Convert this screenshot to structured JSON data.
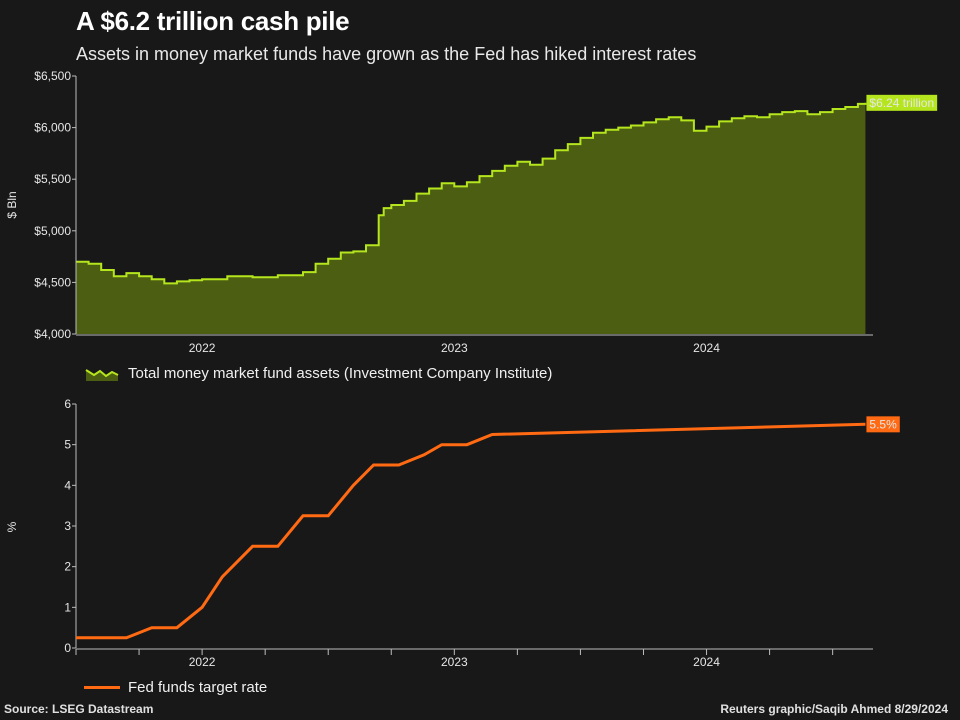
{
  "title": "A $6.2 trillion cash pile",
  "subtitle": "Assets in money market funds have grown as the Fed has hiked interest rates",
  "source": "Source: LSEG Datastream",
  "credit": "Reuters graphic/Saqib Ahmed 8/29/2024",
  "colors": {
    "assets_line": "#b5e61d",
    "assets_fill": "#4b5e12",
    "rate_line": "#ff6a13",
    "background": "#181818"
  },
  "chart_data": [
    {
      "type": "area",
      "ylabel": "$ Bln",
      "ylim": [
        4000,
        6500
      ],
      "yticks": [
        4000,
        4500,
        5000,
        5500,
        6000,
        6500
      ],
      "ytick_labels": [
        "$4,000",
        "$4,500",
        "$5,000",
        "$5,500",
        "$6,000",
        "$6,500"
      ],
      "xlim": [
        2021.5,
        2024.66
      ],
      "xticks": [
        2022,
        2023,
        2024
      ],
      "xtick_labels": [
        "2022",
        "2023",
        "2024"
      ],
      "series": [
        {
          "name": "Total money market fund assets (Investment Company Institute)",
          "x": [
            2021.5,
            2021.55,
            2021.6,
            2021.65,
            2021.7,
            2021.75,
            2021.8,
            2021.85,
            2021.9,
            2021.95,
            2022.0,
            2022.1,
            2022.2,
            2022.3,
            2022.4,
            2022.45,
            2022.5,
            2022.55,
            2022.6,
            2022.65,
            2022.7,
            2022.72,
            2022.75,
            2022.8,
            2022.85,
            2022.9,
            2022.95,
            2023.0,
            2023.05,
            2023.1,
            2023.15,
            2023.2,
            2023.25,
            2023.3,
            2023.35,
            2023.4,
            2023.45,
            2023.5,
            2023.55,
            2023.6,
            2023.65,
            2023.7,
            2023.75,
            2023.8,
            2023.85,
            2023.9,
            2023.95,
            2024.0,
            2024.05,
            2024.1,
            2024.15,
            2024.2,
            2024.25,
            2024.3,
            2024.35,
            2024.4,
            2024.45,
            2024.5,
            2024.55,
            2024.6,
            2024.63
          ],
          "values": [
            4700,
            4680,
            4620,
            4560,
            4590,
            4560,
            4530,
            4490,
            4510,
            4520,
            4530,
            4560,
            4550,
            4570,
            4600,
            4680,
            4730,
            4790,
            4800,
            4860,
            5150,
            5220,
            5250,
            5290,
            5360,
            5410,
            5460,
            5430,
            5470,
            5530,
            5580,
            5630,
            5670,
            5640,
            5700,
            5780,
            5840,
            5900,
            5950,
            5980,
            6000,
            6020,
            6050,
            6080,
            6100,
            6070,
            5970,
            6010,
            6060,
            6090,
            6110,
            6100,
            6130,
            6150,
            6160,
            6130,
            6150,
            6180,
            6200,
            6230,
            6240
          ]
        }
      ],
      "end_label": "$6.24 trillion"
    },
    {
      "type": "line",
      "ylabel": "%",
      "ylim": [
        0,
        6
      ],
      "yticks": [
        0,
        1,
        2,
        3,
        4,
        5,
        6
      ],
      "xlim": [
        2021.5,
        2024.66
      ],
      "xticks": [
        2022,
        2023,
        2024
      ],
      "xtick_labels": [
        "2022",
        "2023",
        "2024"
      ],
      "series": [
        {
          "name": "Fed funds target rate",
          "x": [
            2021.5,
            2021.7,
            2021.8,
            2021.9,
            2022.0,
            2022.08,
            2022.2,
            2022.3,
            2022.4,
            2022.5,
            2022.6,
            2022.68,
            2022.78,
            2022.88,
            2022.95,
            2023.05,
            2023.15,
            2024.63
          ],
          "values": [
            0.25,
            0.25,
            0.5,
            0.5,
            1.0,
            1.75,
            2.5,
            2.5,
            3.25,
            3.25,
            4.0,
            4.5,
            4.5,
            4.75,
            5.0,
            5.0,
            5.25,
            5.5
          ]
        }
      ],
      "end_label": "5.5%"
    }
  ]
}
